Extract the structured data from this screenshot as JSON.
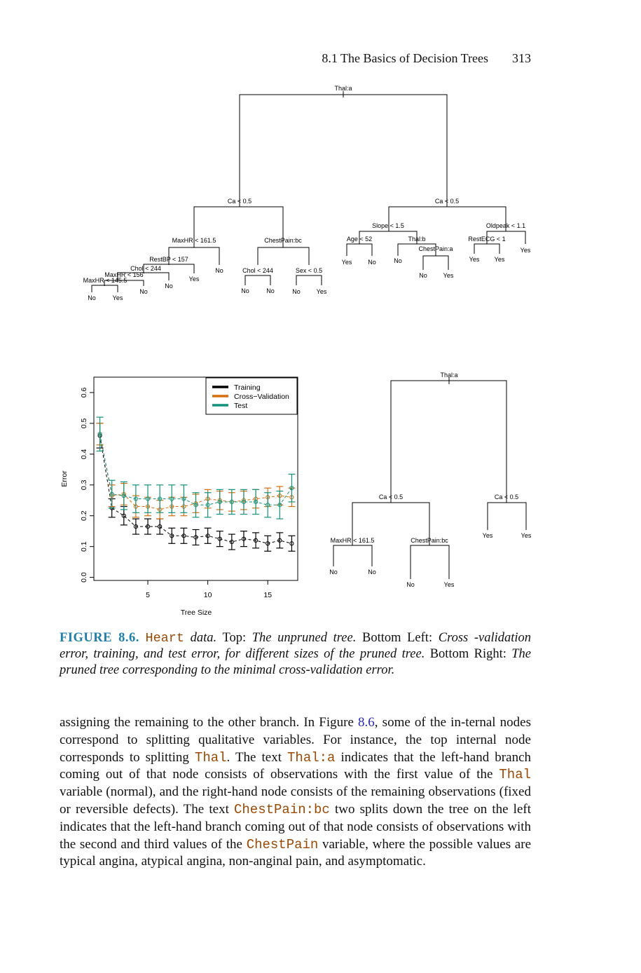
{
  "header": {
    "section": "8.1 The Basics of Decision Trees",
    "page_number": "313"
  },
  "trees": {
    "unpruned": {
      "labels": {
        "root": "Thal:a",
        "ca_left": "Ca < 0.5",
        "ca_right": "Ca < 0.5",
        "maxhr1615": "MaxHR < 161.5",
        "chestpain": "ChestPain:bc",
        "restbp": "RestBP < 157",
        "chol244a": "Chol < 244",
        "maxhr156": "MaxHR < 156",
        "maxhr1455": "MaxHR < 145.5",
        "chol244b": "Chol < 244",
        "sex": "Sex < 0.5",
        "slope": "Slope < 1.5",
        "oldpeak": "Oldpeak < 1.1",
        "age": "Age < 52",
        "thalb": "Thal:b",
        "chestpain_a": "ChestPain:a",
        "restecg": "RestECG < 1"
      },
      "leaves": [
        "No",
        "Yes",
        "No",
        "No",
        "Yes",
        "No",
        "No",
        "No",
        "No",
        "Yes",
        "Yes",
        "No",
        "No",
        "No",
        "Yes",
        "Yes",
        "Yes",
        "Yes"
      ]
    },
    "pruned": {
      "labels": {
        "root": "Thal:a",
        "ca_left": "Ca < 0.5",
        "ca_right": "Ca < 0.5",
        "maxhr": "MaxHR < 161.5",
        "chestpain": "ChestPain:bc"
      },
      "leaves": [
        "No",
        "No",
        "No",
        "Yes",
        "Yes",
        "Yes"
      ]
    }
  },
  "chart_data": {
    "type": "line",
    "xlabel": "Tree Size",
    "ylabel": "Error",
    "xlim": [
      0.5,
      17.5
    ],
    "ylim": [
      -0.01,
      0.65
    ],
    "x_ticks": [
      5,
      10,
      15
    ],
    "y_ticks": [
      0.0,
      0.1,
      0.2,
      0.3,
      0.4,
      0.5,
      0.6
    ],
    "legend_position": "top-right",
    "x": [
      1,
      2,
      3,
      4,
      5,
      6,
      7,
      8,
      9,
      10,
      11,
      12,
      13,
      14,
      15,
      16,
      17
    ],
    "series": [
      {
        "name": "Training",
        "color": "#000000",
        "values": [
          0.46,
          0.225,
          0.2,
          0.165,
          0.165,
          0.165,
          0.135,
          0.135,
          0.13,
          0.135,
          0.125,
          0.115,
          0.125,
          0.12,
          0.11,
          0.12,
          0.11
        ],
        "err": [
          0.04,
          0.03,
          0.03,
          0.025,
          0.025,
          0.025,
          0.025,
          0.025,
          0.025,
          0.025,
          0.025,
          0.025,
          0.025,
          0.025,
          0.025,
          0.025,
          0.025
        ]
      },
      {
        "name": "Cross−Validation",
        "color": "#d56f0d",
        "values": [
          0.465,
          0.265,
          0.27,
          0.23,
          0.23,
          0.22,
          0.23,
          0.23,
          0.24,
          0.255,
          0.25,
          0.245,
          0.25,
          0.255,
          0.26,
          0.265,
          0.26
        ],
        "err": [
          0.035,
          0.035,
          0.035,
          0.035,
          0.03,
          0.03,
          0.03,
          0.03,
          0.03,
          0.03,
          0.03,
          0.03,
          0.03,
          0.03,
          0.03,
          0.03,
          0.03
        ]
      },
      {
        "name": "Test",
        "color": "#14917a",
        "values": [
          0.465,
          0.27,
          0.265,
          0.255,
          0.255,
          0.255,
          0.255,
          0.255,
          0.235,
          0.235,
          0.245,
          0.245,
          0.245,
          0.245,
          0.235,
          0.235,
          0.29
        ],
        "err": [
          0.055,
          0.045,
          0.045,
          0.045,
          0.045,
          0.045,
          0.045,
          0.045,
          0.04,
          0.04,
          0.04,
          0.04,
          0.04,
          0.04,
          0.04,
          0.045,
          0.045
        ]
      }
    ]
  },
  "caption": {
    "figure_label": "FIGURE 8.6.",
    "dataset_code": "Heart",
    "data_word": "data.",
    "top_label": "Top:",
    "top_text": "The unpruned tree.",
    "bottom_left_label": "Bottom Left:",
    "bottom_left_text": "Cross -validation error, training, and test error, for different sizes of the pruned tree.",
    "bottom_right_label": "Bottom Right:",
    "bottom_right_text": "The pruned tree corresponding to the minimal cross-validation error."
  },
  "body": {
    "t1": "assigning the remaining to the other branch. In Figure ",
    "figref": "8.6",
    "t2": ", some of the in-ternal nodes correspond to splitting qualitative variables. For instance, the top internal node corresponds to splitting ",
    "c1": "Thal",
    "t3": ". The text ",
    "c2": "Thal:a",
    "t4": " indicates that the left-hand branch coming out of that node consists of observations with the first value of the ",
    "c3": "Thal",
    "t5": " variable (normal), and the right-hand node consists of the remaining observations (fixed or reversible defects). The text ",
    "c4": "ChestPain:bc",
    "t6": " two splits down the tree on the left indicates that the left-hand branch coming out of that node consists of observations with the second and third values of the ",
    "c5": "ChestPain",
    "t7": " variable, where the possible values are typical angina, atypical angina, non-anginal pain, and asymptomatic."
  }
}
